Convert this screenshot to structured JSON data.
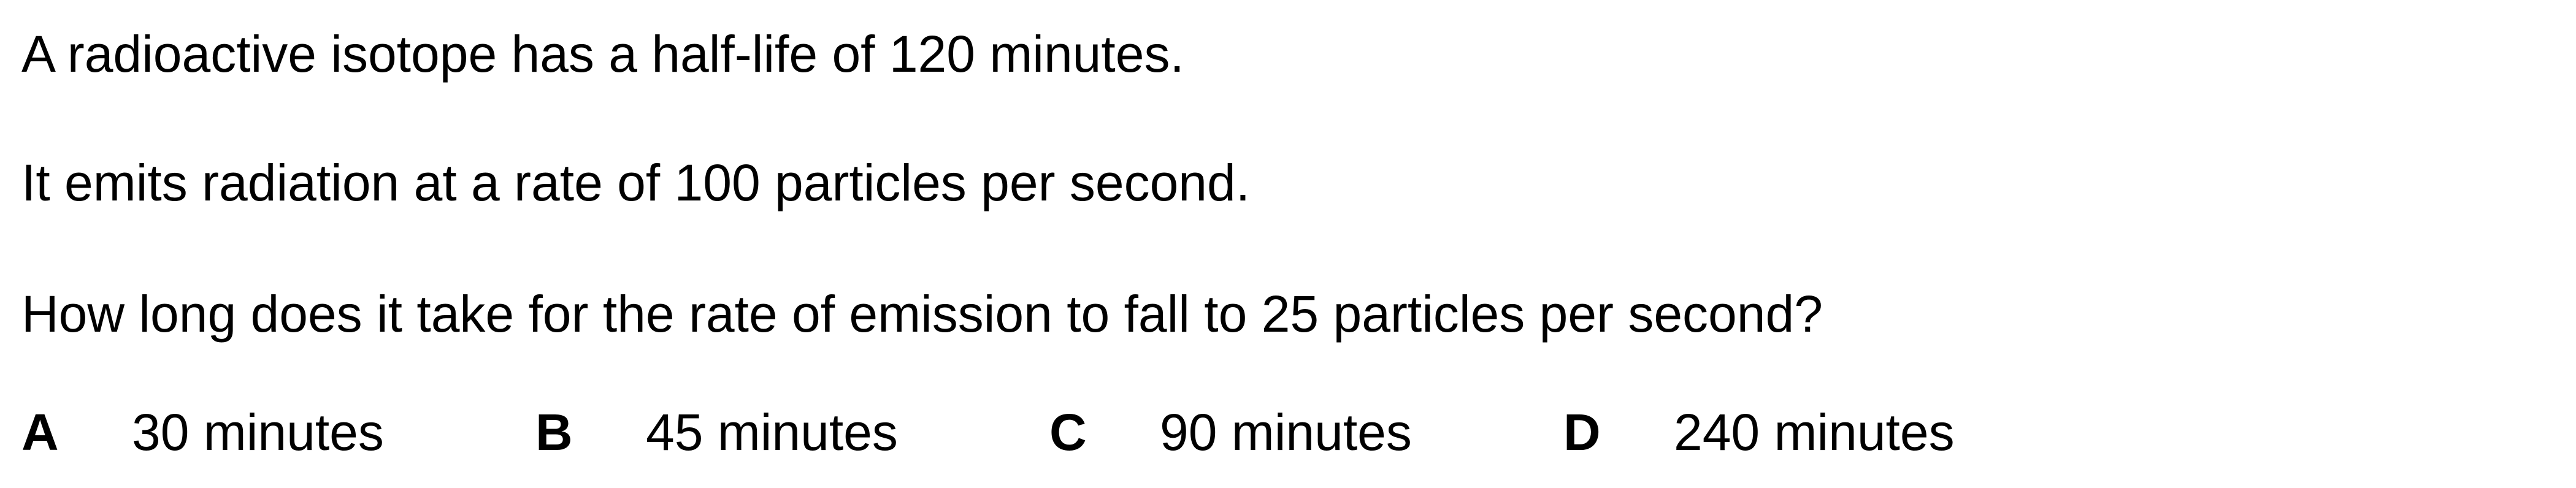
{
  "question": {
    "lines": [
      "A radioactive isotope has a half-life of 120 minutes.",
      "It emits radiation at a rate of 100 particles per second.",
      "How long does it take for the rate of emission to fall to 25 particles per second?"
    ]
  },
  "options": [
    {
      "letter": "A",
      "text": "30 minutes"
    },
    {
      "letter": "B",
      "text": "45 minutes"
    },
    {
      "letter": "C",
      "text": "90 minutes"
    },
    {
      "letter": "D",
      "text": "240 minutes"
    }
  ]
}
